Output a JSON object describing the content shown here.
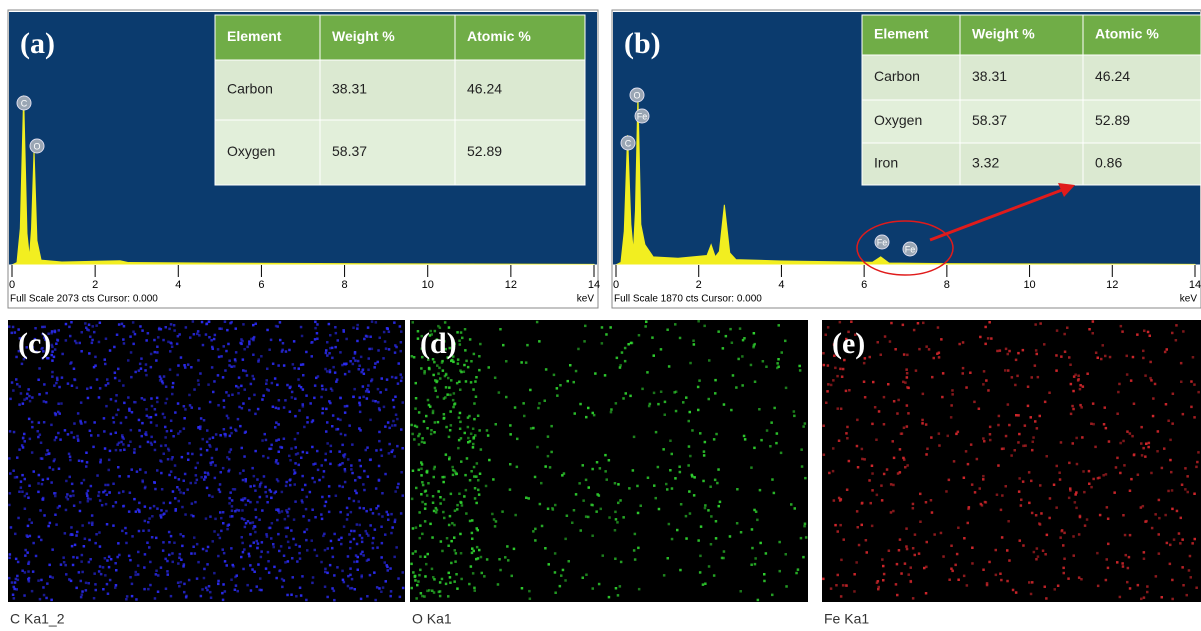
{
  "panels": [
    {
      "label": "(a)",
      "footer": "Full Scale 2073 cts Cursor: 0.000",
      "x_unit": "keV",
      "xlim": [
        0,
        14
      ],
      "xticks": [
        0,
        2,
        4,
        6,
        8,
        10,
        12,
        14
      ],
      "ylim": [
        0,
        2073
      ],
      "peak_labels": [
        "C",
        "O"
      ],
      "spectrum": {
        "x": [
          0,
          0.12,
          0.2,
          0.28,
          0.36,
          0.42,
          0.47,
          0.53,
          0.6,
          0.7,
          1.2,
          2.6,
          2.8,
          5,
          9,
          14
        ],
        "values": [
          0,
          20,
          300,
          1390,
          260,
          60,
          300,
          940,
          200,
          40,
          25,
          35,
          20,
          15,
          10,
          5
        ]
      },
      "table": {
        "header": [
          "Element",
          "Weight %",
          "Atomic %"
        ],
        "rows": [
          [
            "Carbon",
            38.31,
            46.24
          ],
          [
            "Oxygen",
            58.37,
            52.89
          ]
        ]
      }
    },
    {
      "label": "(b)",
      "footer": "Full Scale 1870 cts Cursor: 0.000",
      "x_unit": "keV",
      "xlim": [
        0,
        14
      ],
      "xticks": [
        0,
        2,
        4,
        6,
        8,
        10,
        12,
        14
      ],
      "ylim": [
        0,
        1870
      ],
      "peak_labels": [
        "O",
        "Fe",
        "C",
        "Fe",
        "Fe"
      ],
      "spectrum": {
        "x": [
          0,
          0.12,
          0.2,
          0.28,
          0.36,
          0.42,
          0.47,
          0.53,
          0.6,
          0.7,
          0.9,
          1.5,
          2.2,
          2.3,
          2.4,
          2.5,
          2.62,
          2.75,
          2.9,
          4,
          6.2,
          6.4,
          6.6,
          8,
          14
        ],
        "values": [
          0,
          20,
          250,
          960,
          300,
          100,
          400,
          1260,
          300,
          150,
          60,
          50,
          70,
          150,
          60,
          100,
          445,
          90,
          40,
          30,
          20,
          60,
          15,
          10,
          5
        ]
      },
      "table": {
        "header": [
          "Element",
          "Weight %",
          "Atomic %"
        ],
        "rows": [
          [
            "Carbon",
            38.31,
            46.24
          ],
          [
            "Oxygen",
            58.37,
            52.89
          ],
          [
            "Iron",
            3.32,
            0.86
          ]
        ]
      }
    }
  ],
  "maps": [
    {
      "label": "(c)",
      "caption": "C Ka1_2",
      "color": "#2b2bf0"
    },
    {
      "label": "(d)",
      "caption": "O Ka1",
      "color": "#2fd12f"
    },
    {
      "label": "(e)",
      "caption": "Fe Ka1",
      "color": "#d0262b"
    }
  ]
}
